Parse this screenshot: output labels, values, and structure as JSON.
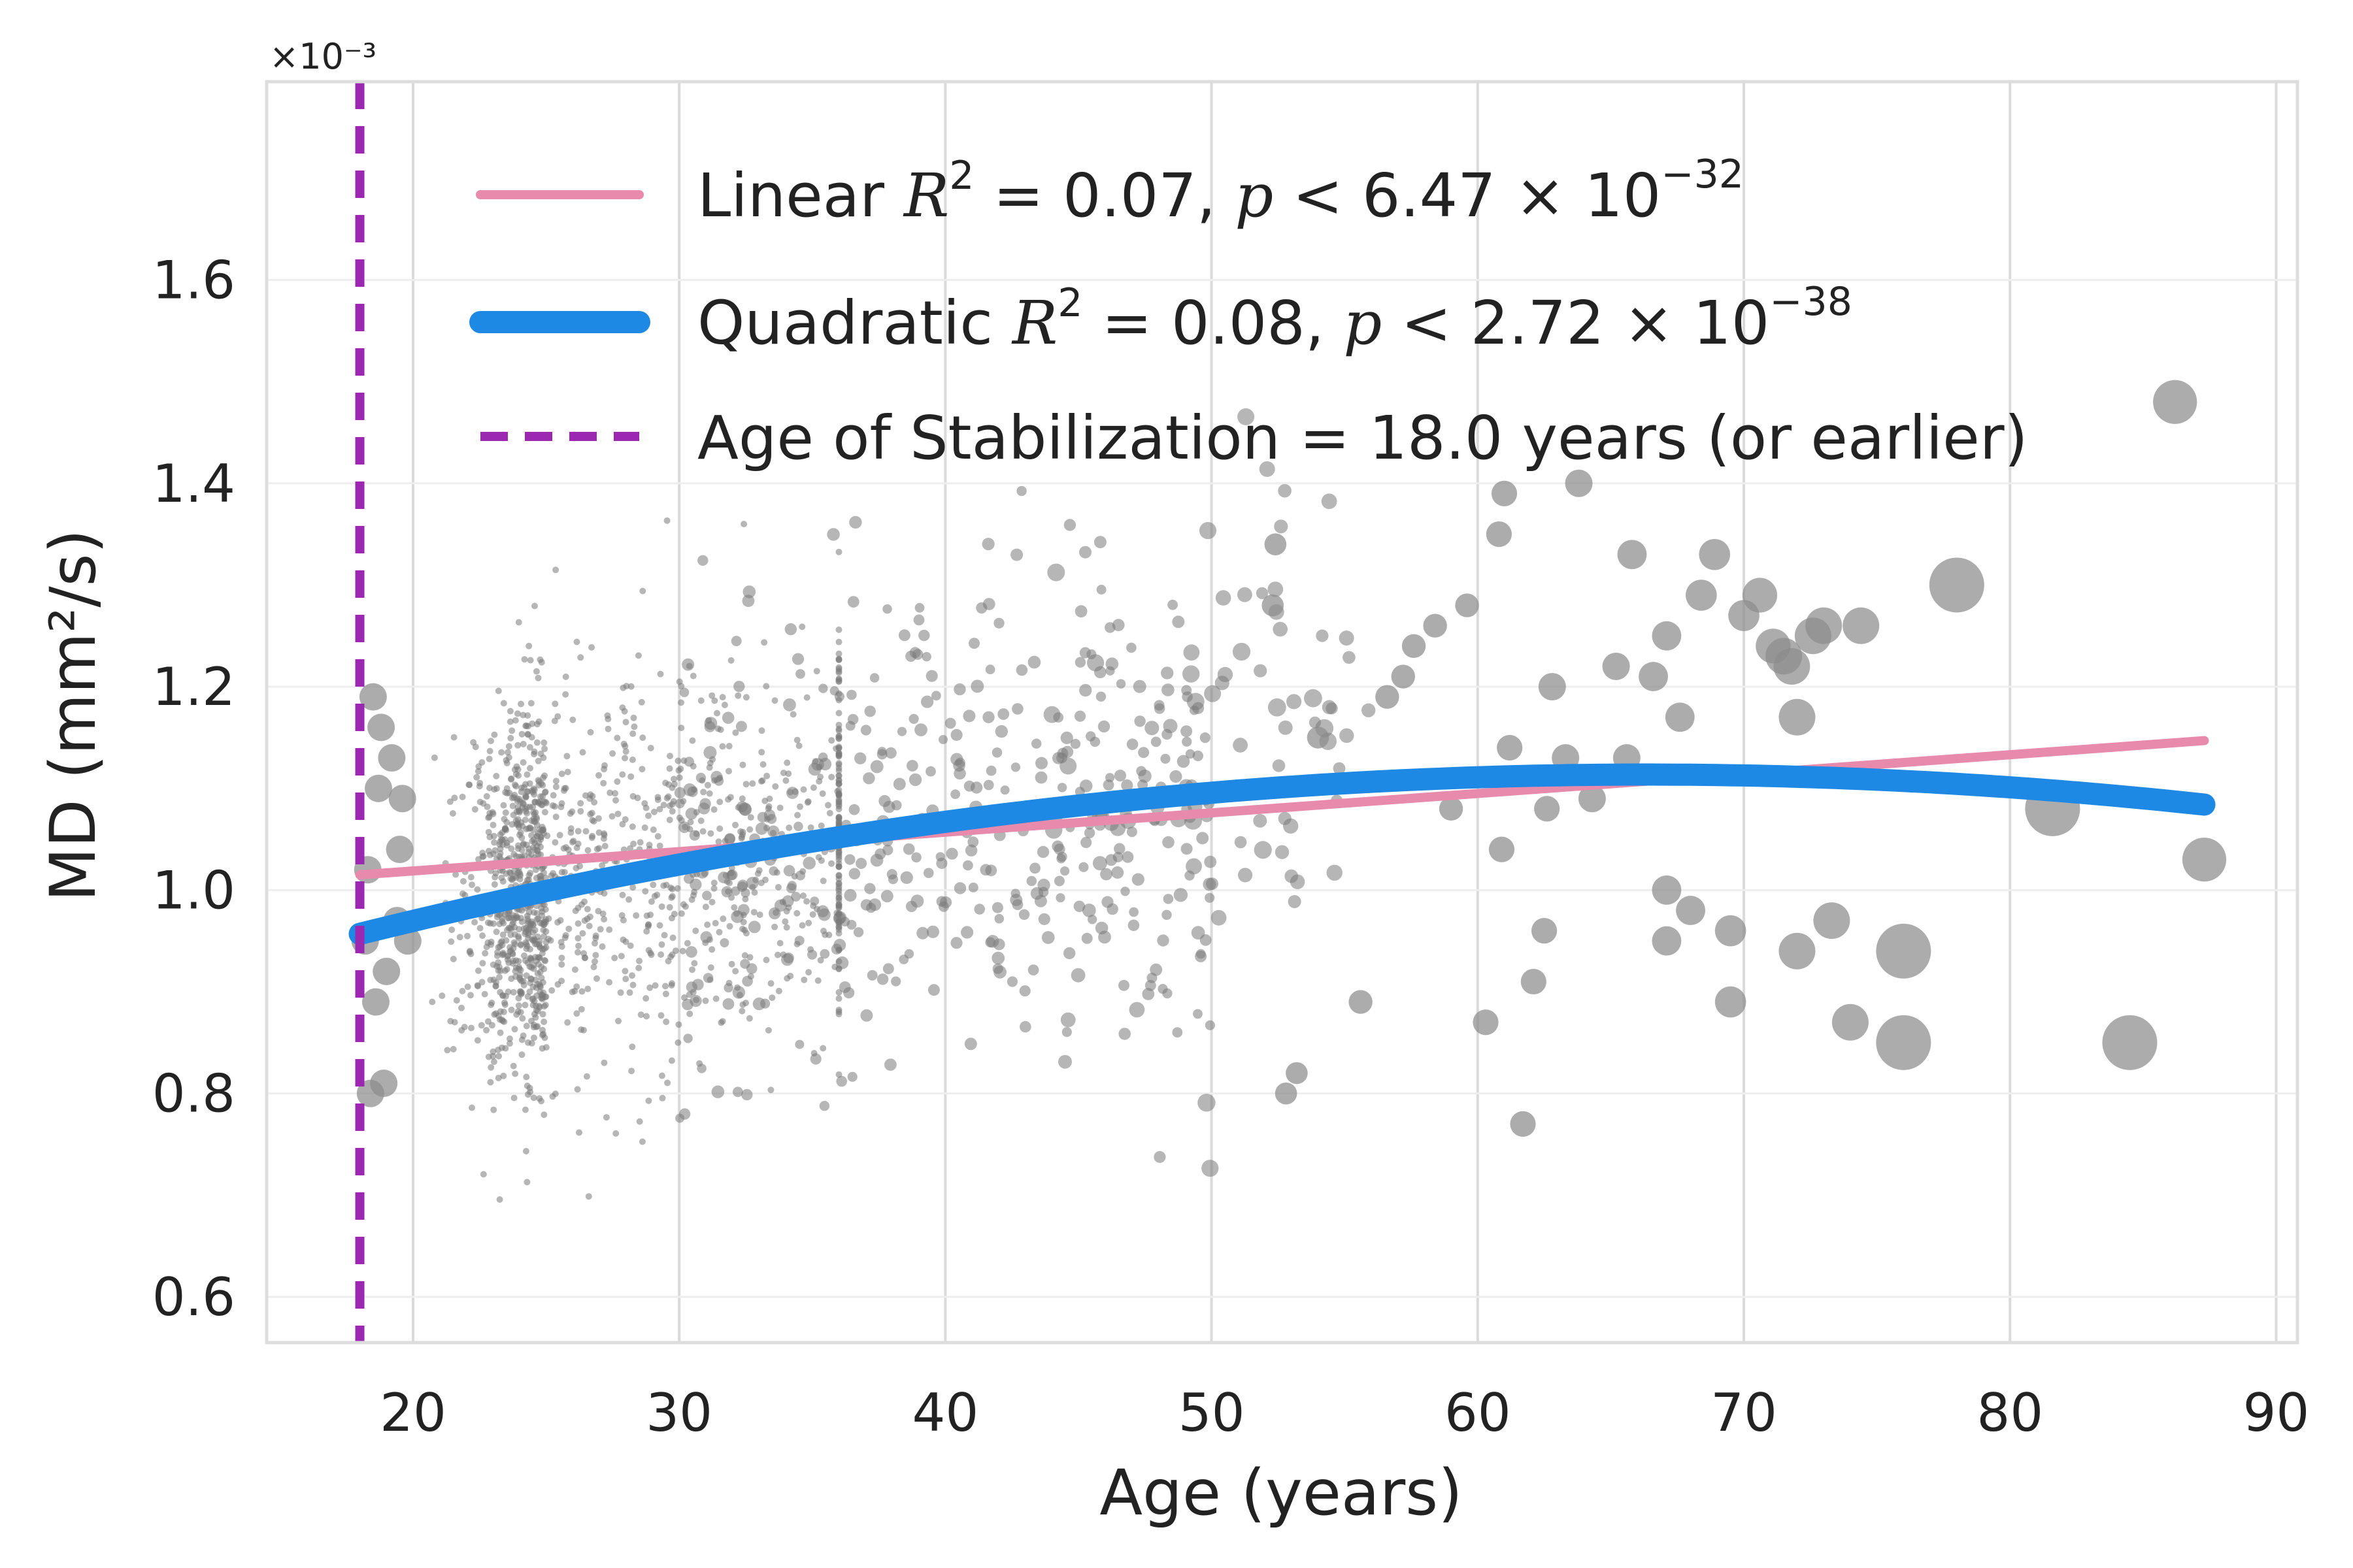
{
  "chart_data": {
    "type": "scatter",
    "title": "",
    "xlabel": "Age (years)",
    "ylabel": "MD (mm²/s)",
    "y_scale_label": "×10⁻³",
    "xlim": [
      14.5,
      90.8
    ],
    "ylim": [
      0.555,
      1.795
    ],
    "x_ticks": [
      20,
      30,
      40,
      50,
      60,
      70,
      80,
      90
    ],
    "y_ticks": [
      0.6,
      0.8,
      1.0,
      1.2,
      1.4,
      1.6
    ],
    "x_tick_labels": [
      "20",
      "30",
      "40",
      "50",
      "60",
      "70",
      "80",
      "90"
    ],
    "y_tick_labels": [
      "0.6",
      "0.8",
      "1.0",
      "1.2",
      "1.4",
      "1.6"
    ],
    "grid": true,
    "legend_position": "top-right",
    "colors": {
      "points": "#7a7a7a",
      "linear": "#e88aab",
      "quadratic": "#1e88e5",
      "stabilization": "#9c27b0",
      "grid": "#e4e4e4",
      "spine": "#dddddd",
      "text": "#222222"
    },
    "legend": [
      {
        "name": "Linear",
        "stats": "R² = 0.07, p < 6.47 × 10⁻³²",
        "r2": "0.07",
        "p": "6.47",
        "p_exp": "−32",
        "style": "line"
      },
      {
        "name": "Quadratic",
        "stats": "R² = 0.08, p < 2.72 × 10⁻³⁸",
        "r2": "0.08",
        "p": "2.72",
        "p_exp": "−38",
        "style": "thick-line"
      },
      {
        "name": "Age of Stabilization = 18.0 years (or earlier)",
        "style": "dashed"
      }
    ],
    "stabilization_age": 18.0,
    "linear_fit": {
      "x_range": [
        18.0,
        87.3
      ],
      "y_start": 1.015,
      "y_end": 1.147
    },
    "quadratic_fit": {
      "x_range": [
        18.0,
        87.3
      ],
      "coefficients": [
        0.8185,
        0.0089,
        -6.71e-05
      ]
    },
    "large_points": [
      {
        "x": 18.3,
        "y": 1.02,
        "s": 1.5
      },
      {
        "x": 18.5,
        "y": 1.19,
        "s": 1.5
      },
      {
        "x": 18.7,
        "y": 1.1,
        "s": 1.5
      },
      {
        "x": 18.2,
        "y": 0.95,
        "s": 1.5
      },
      {
        "x": 18.6,
        "y": 0.89,
        "s": 1.5
      },
      {
        "x": 18.9,
        "y": 0.81,
        "s": 1.5
      },
      {
        "x": 19.2,
        "y": 1.13,
        "s": 1.5
      },
      {
        "x": 19.5,
        "y": 1.04,
        "s": 1.5
      },
      {
        "x": 19.8,
        "y": 0.95,
        "s": 1.5
      },
      {
        "x": 19.6,
        "y": 1.09,
        "s": 1.5
      },
      {
        "x": 18.8,
        "y": 1.16,
        "s": 1.5
      },
      {
        "x": 18.4,
        "y": 0.8,
        "s": 1.5
      },
      {
        "x": 19.0,
        "y": 0.92,
        "s": 1.5
      },
      {
        "x": 19.4,
        "y": 0.97,
        "s": 1.5
      },
      {
        "x": 55.6,
        "y": 0.89,
        "s": 1.3
      },
      {
        "x": 57.2,
        "y": 1.21,
        "s": 1.3
      },
      {
        "x": 58.4,
        "y": 1.26,
        "s": 1.3
      },
      {
        "x": 59.6,
        "y": 1.28,
        "s": 1.3
      },
      {
        "x": 60.3,
        "y": 0.87,
        "s": 1.4
      },
      {
        "x": 60.8,
        "y": 1.35,
        "s": 1.4
      },
      {
        "x": 61.0,
        "y": 1.39,
        "s": 1.4
      },
      {
        "x": 61.2,
        "y": 1.14,
        "s": 1.4
      },
      {
        "x": 61.7,
        "y": 0.77,
        "s": 1.4
      },
      {
        "x": 62.1,
        "y": 0.91,
        "s": 1.4
      },
      {
        "x": 62.5,
        "y": 0.96,
        "s": 1.4
      },
      {
        "x": 62.8,
        "y": 1.2,
        "s": 1.5
      },
      {
        "x": 63.3,
        "y": 1.13,
        "s": 1.5
      },
      {
        "x": 63.8,
        "y": 1.4,
        "s": 1.5
      },
      {
        "x": 65.2,
        "y": 1.22,
        "s": 1.5
      },
      {
        "x": 65.6,
        "y": 1.13,
        "s": 1.5
      },
      {
        "x": 65.8,
        "y": 1.33,
        "s": 1.6
      },
      {
        "x": 66.6,
        "y": 1.21,
        "s": 1.6
      },
      {
        "x": 67.1,
        "y": 1.25,
        "s": 1.6
      },
      {
        "x": 67.1,
        "y": 1.0,
        "s": 1.6
      },
      {
        "x": 67.1,
        "y": 0.95,
        "s": 1.6
      },
      {
        "x": 67.6,
        "y": 1.17,
        "s": 1.6
      },
      {
        "x": 68.0,
        "y": 0.98,
        "s": 1.6
      },
      {
        "x": 68.4,
        "y": 1.29,
        "s": 1.7
      },
      {
        "x": 68.9,
        "y": 1.33,
        "s": 1.7
      },
      {
        "x": 69.5,
        "y": 0.89,
        "s": 1.7
      },
      {
        "x": 69.5,
        "y": 0.96,
        "s": 1.7
      },
      {
        "x": 70.0,
        "y": 1.27,
        "s": 1.7
      },
      {
        "x": 70.6,
        "y": 1.29,
        "s": 1.9
      },
      {
        "x": 71.1,
        "y": 1.24,
        "s": 1.9
      },
      {
        "x": 71.5,
        "y": 1.23,
        "s": 2.0
      },
      {
        "x": 71.8,
        "y": 1.22,
        "s": 2.0
      },
      {
        "x": 72.0,
        "y": 0.94,
        "s": 2.0
      },
      {
        "x": 72.0,
        "y": 1.17,
        "s": 2.0
      },
      {
        "x": 72.6,
        "y": 1.25,
        "s": 2.0
      },
      {
        "x": 73.0,
        "y": 1.26,
        "s": 2.0
      },
      {
        "x": 73.3,
        "y": 0.97,
        "s": 2.0
      },
      {
        "x": 74.0,
        "y": 0.87,
        "s": 2.0
      },
      {
        "x": 74.4,
        "y": 1.26,
        "s": 2.0
      },
      {
        "x": 76.0,
        "y": 0.94,
        "s": 3.0
      },
      {
        "x": 76.0,
        "y": 0.85,
        "s": 3.0
      },
      {
        "x": 78.0,
        "y": 1.3,
        "s": 3.0
      },
      {
        "x": 81.6,
        "y": 1.08,
        "s": 3.0
      },
      {
        "x": 84.5,
        "y": 0.85,
        "s": 3.0
      },
      {
        "x": 86.2,
        "y": 1.48,
        "s": 2.4
      },
      {
        "x": 87.3,
        "y": 1.03,
        "s": 2.4
      },
      {
        "x": 54.0,
        "y": 1.15,
        "s": 1.2
      },
      {
        "x": 52.8,
        "y": 0.8,
        "s": 1.2
      },
      {
        "x": 53.2,
        "y": 0.82,
        "s": 1.2
      },
      {
        "x": 52.4,
        "y": 1.34,
        "s": 1.2
      },
      {
        "x": 52.3,
        "y": 1.28,
        "s": 1.2
      },
      {
        "x": 56.6,
        "y": 1.19,
        "s": 1.3
      },
      {
        "x": 57.6,
        "y": 1.24,
        "s": 1.3
      },
      {
        "x": 59.0,
        "y": 1.08,
        "s": 1.3
      },
      {
        "x": 60.9,
        "y": 1.04,
        "s": 1.4
      },
      {
        "x": 64.3,
        "y": 1.09,
        "s": 1.5
      },
      {
        "x": 62.6,
        "y": 1.08,
        "s": 1.4
      }
    ],
    "scatter_points": "approximately 2000 small grey points concentrated between ages 19 and 55, MD between 0.72 and 1.30"
  }
}
